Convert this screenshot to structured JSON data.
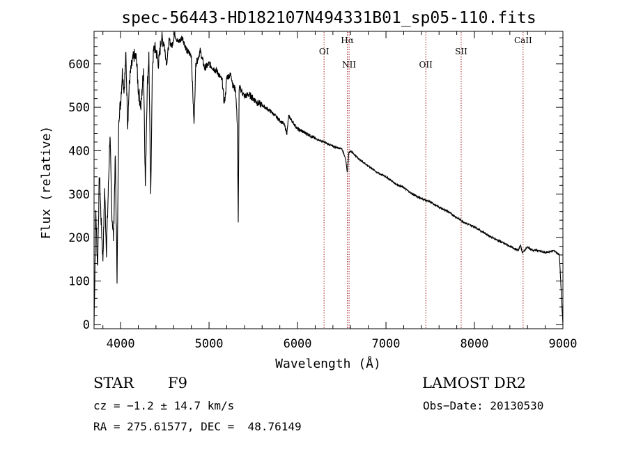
{
  "chart_data": {
    "type": "line",
    "title": "spec-56443-HD182107N494331B01_sp05-110.fits",
    "xlabel": "Wavelength (Å)",
    "ylabel": "Flux (relative)",
    "xlim": [
      3700,
      9000
    ],
    "ylim": [
      -10,
      675
    ],
    "x_ticks": [
      "4000",
      "5000",
      "6000",
      "7000",
      "8000",
      "9000"
    ],
    "y_ticks": [
      "0",
      "100",
      "200",
      "300",
      "400",
      "500",
      "600"
    ],
    "grid": false,
    "series": [
      {
        "x": [
          3700,
          3720,
          3740,
          3760,
          3780,
          3800,
          3820,
          3840,
          3860,
          3880,
          3900,
          3920,
          3940,
          3960,
          3980,
          4000,
          4020,
          4040,
          4060,
          4080,
          4100,
          4120,
          4150,
          4180,
          4200,
          4230,
          4260,
          4280,
          4300,
          4320,
          4340,
          4360,
          4380,
          4400,
          4430,
          4460,
          4490,
          4520,
          4550,
          4580,
          4610,
          4650,
          4700,
          4750,
          4800,
          4830,
          4850,
          4870,
          4900,
          4950,
          5000,
          5050,
          5100,
          5150,
          5170,
          5180,
          5190,
          5200,
          5250,
          5270,
          5300,
          5320,
          5330,
          5340,
          5350,
          5400,
          5450,
          5500,
          5550,
          5600,
          5700,
          5800,
          5850,
          5880,
          5900,
          6000,
          6100,
          6200,
          6300,
          6400,
          6500,
          6540,
          6563,
          6580,
          6600,
          6700,
          6800,
          6900,
          7000,
          7100,
          7200,
          7300,
          7400,
          7500,
          7600,
          7700,
          7800,
          7900,
          8000,
          8100,
          8200,
          8300,
          8400,
          8498,
          8520,
          8542,
          8600,
          8662,
          8700,
          8800,
          8900,
          8960,
          8985,
          8995,
          9000
        ],
        "values": [
          0,
          260,
          130,
          350,
          240,
          150,
          310,
          170,
          300,
          440,
          260,
          200,
          390,
          110,
          480,
          510,
          580,
          540,
          620,
          460,
          560,
          590,
          620,
          610,
          540,
          500,
          590,
          320,
          540,
          620,
          290,
          600,
          640,
          630,
          600,
          660,
          650,
          600,
          655,
          640,
          670,
          650,
          660,
          630,
          620,
          460,
          600,
          610,
          630,
          590,
          600,
          590,
          580,
          560,
          510,
          520,
          540,
          570,
          575,
          550,
          540,
          460,
          230,
          540,
          545,
          525,
          530,
          520,
          510,
          505,
          490,
          470,
          460,
          440,
          480,
          450,
          440,
          428,
          420,
          410,
          405,
          385,
          350,
          395,
          400,
          380,
          365,
          350,
          340,
          325,
          315,
          300,
          290,
          282,
          270,
          260,
          246,
          233,
          225,
          212,
          200,
          190,
          180,
          170,
          183,
          165,
          178,
          170,
          171,
          165,
          170,
          160,
          60,
          20,
          0
        ]
      }
    ],
    "annotations": [
      {
        "label": "OI",
        "x": 6300,
        "label_row": 2
      },
      {
        "label": "Hα",
        "x": 6563,
        "label_row": 1
      },
      {
        "label": "NII",
        "x": 6583,
        "label_row": 3
      },
      {
        "label": "OII",
        "x": 7450,
        "label_row": 3
      },
      {
        "label": "SII",
        "x": 7850,
        "label_row": 2
      },
      {
        "label": "CaII",
        "x": 8550,
        "label_row": 1
      }
    ]
  },
  "info": {
    "object_class": "STAR",
    "subclass": "F9",
    "survey": "LAMOST DR2",
    "cz": "cz = −1.2 ± 14.7 km/s",
    "obs_date": "Obs−Date: 20130530",
    "coords": "RA = 275.61577, DEC =  48.76149"
  },
  "colors": {
    "spectrum": "#000000",
    "annotation_line": "#a0191e",
    "axes": "#000000",
    "background": "#ffffff"
  }
}
